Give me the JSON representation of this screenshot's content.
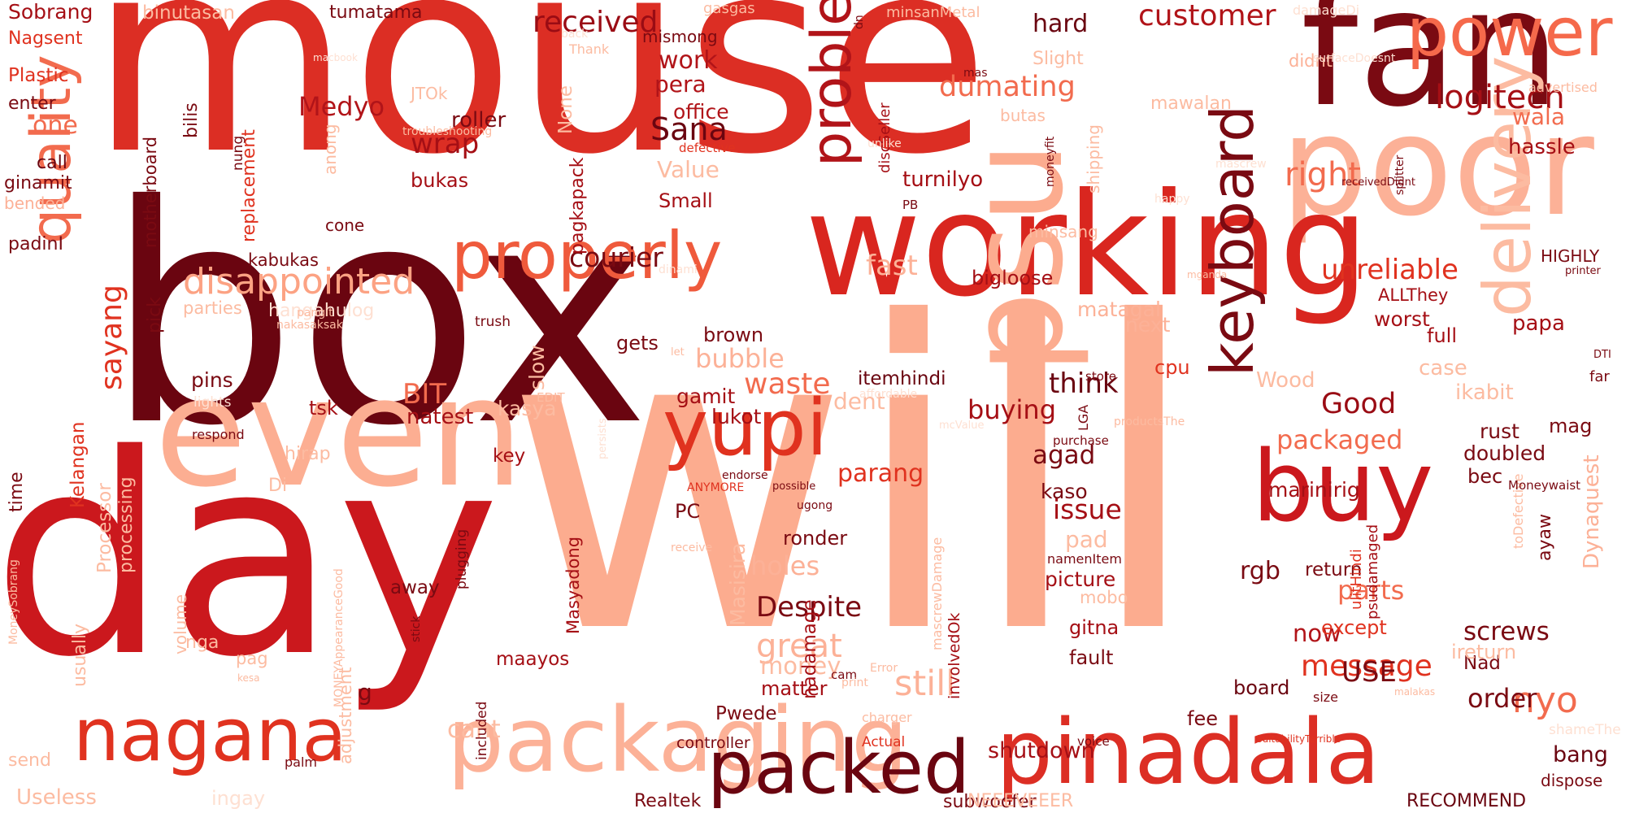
{
  "palette": {
    "darkest": "#67000d",
    "dark": "#a50f15",
    "red": "#cb181d",
    "mid_red": "#ef3b2c",
    "salmon": "#fb6a4a",
    "light_salmon": "#fc9272",
    "peach": "#fcbba1",
    "pale": "#fee0d2"
  },
  "words": [
    {
      "text": "mouse",
      "color": "#dc2e24"
    },
    {
      "text": "box",
      "color": "#6a0510"
    },
    {
      "text": "will",
      "color": "#fcac8f"
    },
    {
      "text": "day",
      "color": "#cb181d"
    },
    {
      "text": "fan",
      "color": "#7a0a12"
    },
    {
      "text": "poor",
      "color": "#fcb197"
    },
    {
      "text": "working",
      "color": "#d9261f"
    },
    {
      "text": "even",
      "color": "#fcae92"
    },
    {
      "text": "packaging",
      "color": "#fcb197"
    },
    {
      "text": "pinadala",
      "color": "#dc2e24"
    },
    {
      "text": "packed",
      "color": "#6a0510"
    },
    {
      "text": "buy",
      "color": "#cb181d"
    },
    {
      "text": "power",
      "color": "#f5694b"
    },
    {
      "text": "nagana",
      "color": "#e0321f"
    },
    {
      "text": "yupi",
      "color": "#e0321f"
    },
    {
      "text": "properly",
      "color": "#ef5a3c"
    },
    {
      "text": "quality",
      "color": "#f26b4e"
    },
    {
      "text": "keyboard",
      "color": "#7a0a12"
    },
    {
      "text": "psu",
      "color": "#fcac8f"
    },
    {
      "text": "delivery",
      "color": "#fcbba1"
    },
    {
      "text": "problem",
      "color": "#b11419"
    },
    {
      "text": "disappointed",
      "color": "#fca283"
    },
    {
      "text": "customer",
      "color": "#b11419"
    },
    {
      "text": "logitech",
      "color": "#a50f15"
    },
    {
      "text": "received",
      "color": "#9a0c14"
    },
    {
      "text": "Sana",
      "color": "#6a0510"
    },
    {
      "text": "wrap",
      "color": "#a50f15"
    },
    {
      "text": "right",
      "color": "#f26b4e"
    },
    {
      "text": "dumating",
      "color": "#f26b4e"
    },
    {
      "text": "unreliable",
      "color": "#e0321f"
    },
    {
      "text": "courier",
      "color": "#7a0a12"
    },
    {
      "text": "sayang",
      "color": "#e0321f"
    },
    {
      "text": "waste",
      "color": "#f26b4e"
    },
    {
      "text": "packaged",
      "color": "#f26b4e"
    },
    {
      "text": "parts",
      "color": "#f26b4e"
    },
    {
      "text": "Despite",
      "color": "#7a0a12"
    },
    {
      "text": "screws",
      "color": "#7a0a12"
    },
    {
      "text": "message",
      "color": "#e0321f"
    },
    {
      "text": "still",
      "color": "#fcb197"
    },
    {
      "text": "great",
      "color": "#fcb197"
    },
    {
      "text": "nyo",
      "color": "#f26b4e"
    },
    {
      "text": "order",
      "color": "#7a0a12"
    },
    {
      "text": "Good",
      "color": "#9a0c14"
    },
    {
      "text": "buying",
      "color": "#a50f15"
    },
    {
      "text": "issue",
      "color": "#a50f15"
    },
    {
      "text": "think",
      "color": "#6a0510"
    },
    {
      "text": "BIT",
      "color": "#f26b4e"
    },
    {
      "text": "Medyo",
      "color": "#b11419"
    },
    {
      "text": "fast",
      "color": "#fcb197"
    },
    {
      "text": "bubble",
      "color": "#fcb197"
    },
    {
      "text": "holes",
      "color": "#fcb197"
    },
    {
      "text": "Value",
      "color": "#fcbba1"
    },
    {
      "text": "hard",
      "color": "#6a0510"
    },
    {
      "text": "one",
      "color": "#f26b4e"
    },
    {
      "text": "work",
      "color": "#b11419"
    },
    {
      "text": "pera",
      "color": "#b11419"
    },
    {
      "text": "dent",
      "color": "#fcbba1"
    },
    {
      "text": "parang",
      "color": "#e0321f"
    },
    {
      "text": "agad",
      "color": "#7a0a12"
    },
    {
      "text": "rgb",
      "color": "#7a0a12"
    },
    {
      "text": "USE",
      "color": "#7a0a12"
    },
    {
      "text": "now",
      "color": "#b11419"
    },
    {
      "text": "money",
      "color": "#fcbba1"
    },
    {
      "text": "cant",
      "color": "#fcbba1"
    },
    {
      "text": "shutdown",
      "color": "#a50f15"
    },
    {
      "text": "bang",
      "color": "#6a0510"
    },
    {
      "text": "Dynaquest",
      "color": "#fcb197"
    },
    {
      "text": "wala",
      "color": "#f26b4e"
    },
    {
      "text": "hassle",
      "color": "#a50f15"
    },
    {
      "text": "roller",
      "color": "#7a0a12"
    },
    {
      "text": "office",
      "color": "#b11419"
    },
    {
      "text": "Small",
      "color": "#a50f15"
    },
    {
      "text": "bukas",
      "color": "#a50f15"
    },
    {
      "text": "turnilyo",
      "color": "#a50f15"
    },
    {
      "text": "bigloose",
      "color": "#a50f15"
    },
    {
      "text": "matagal",
      "color": "#fcb197"
    },
    {
      "text": "next",
      "color": "#fcb197"
    },
    {
      "text": "worst",
      "color": "#a50f15"
    },
    {
      "text": "full",
      "color": "#a50f15"
    },
    {
      "text": "papa",
      "color": "#a50f15"
    },
    {
      "text": "rust",
      "color": "#7a0a12"
    },
    {
      "text": "doubled",
      "color": "#7a0a12"
    },
    {
      "text": "bec",
      "color": "#7a0a12"
    },
    {
      "text": "mag",
      "color": "#7a0a12"
    },
    {
      "text": "marinirig",
      "color": "#a50f15"
    },
    {
      "text": "kaso",
      "color": "#7a0a12"
    },
    {
      "text": "return",
      "color": "#7a0a12"
    },
    {
      "text": "pad",
      "color": "#fcbba1"
    },
    {
      "text": "picture",
      "color": "#a50f15"
    },
    {
      "text": "fault",
      "color": "#7a0a12"
    },
    {
      "text": "gitna",
      "color": "#a50f15"
    },
    {
      "text": "fee",
      "color": "#7a0a12"
    },
    {
      "text": "board",
      "color": "#6a0510"
    },
    {
      "text": "Nad",
      "color": "#7a0a12"
    },
    {
      "text": "except",
      "color": "#e0321f"
    },
    {
      "text": "ayaw",
      "color": "#7a0a12"
    },
    {
      "text": "ireturn",
      "color": "#fcbba1"
    },
    {
      "text": "case",
      "color": "#fcbba1"
    },
    {
      "text": "ikabit",
      "color": "#fcbba1"
    },
    {
      "text": "Wood",
      "color": "#fcbba1"
    },
    {
      "text": "cpu",
      "color": "#e0321f"
    },
    {
      "text": "itemhindi",
      "color": "#6a0510"
    },
    {
      "text": "lukot",
      "color": "#a50f15"
    },
    {
      "text": "gamit",
      "color": "#a50f15"
    },
    {
      "text": "natest",
      "color": "#a50f15"
    },
    {
      "text": "brown",
      "color": "#7a0a12"
    },
    {
      "text": "gets",
      "color": "#7a0a12"
    },
    {
      "text": "pins",
      "color": "#7a0a12"
    },
    {
      "text": "tsk",
      "color": "#a50f15"
    },
    {
      "text": "key",
      "color": "#a50f15"
    },
    {
      "text": "kasya",
      "color": "#fcbba1"
    },
    {
      "text": "slow",
      "color": "#fcbba1"
    },
    {
      "text": "PC",
      "color": "#7a0a12"
    },
    {
      "text": "ronder",
      "color": "#7a0a12"
    },
    {
      "text": "away",
      "color": "#7a0a12"
    },
    {
      "text": "Masisira",
      "color": "#fcbba1"
    },
    {
      "text": "Pwede",
      "color": "#7a0a12"
    },
    {
      "text": "matter",
      "color": "#a50f15"
    },
    {
      "text": "g",
      "color": "#7a0a12"
    },
    {
      "text": "nadamage",
      "color": "#a50f15"
    },
    {
      "text": "maayos",
      "color": "#a50f15"
    },
    {
      "text": "Realtek",
      "color": "#7a0a12"
    },
    {
      "text": "subwoofer",
      "color": "#7a0a12"
    },
    {
      "text": "RECOMMEND",
      "color": "#6a0510"
    },
    {
      "text": "Useless",
      "color": "#fcbba1"
    },
    {
      "text": "ingay",
      "color": "#fee0d2"
    },
    {
      "text": "controller",
      "color": "#7a0a12"
    },
    {
      "text": "Actual",
      "color": "#e0321f"
    },
    {
      "text": "NEEEVEEER",
      "color": "#fcbba1"
    },
    {
      "text": "Sobrang",
      "color": "#a50f15"
    },
    {
      "text": "Nagsent",
      "color": "#e0321f"
    },
    {
      "text": "Plastic",
      "color": "#e0321f"
    },
    {
      "text": "enter",
      "color": "#7a0a12"
    },
    {
      "text": "call",
      "color": "#6a0510"
    },
    {
      "text": "ginamit",
      "color": "#7a0a12"
    },
    {
      "text": "bended",
      "color": "#fcb197"
    },
    {
      "text": "padinI",
      "color": "#7a0a12"
    },
    {
      "text": "binutasan",
      "color": "#fcbba1"
    },
    {
      "text": "tumatama",
      "color": "#7a0a12"
    },
    {
      "text": "gasgas",
      "color": "#fcbba1"
    },
    {
      "text": "minsanMetal",
      "color": "#fcbba1"
    },
    {
      "text": "JTOk",
      "color": "#fcbba1"
    },
    {
      "text": "kabukas",
      "color": "#7a0a12"
    },
    {
      "text": "cone",
      "color": "#7a0a12"
    },
    {
      "text": "parties",
      "color": "#fcbba1"
    },
    {
      "text": "hangahulog",
      "color": "#fee0d2"
    },
    {
      "text": "pick",
      "color": "#7a0a12"
    },
    {
      "text": "mismong",
      "color": "#7a0a12"
    },
    {
      "text": "didnt",
      "color": "#fcb197"
    },
    {
      "text": "Slight",
      "color": "#fcbba1"
    },
    {
      "text": "mawalan",
      "color": "#fcbba1"
    },
    {
      "text": "butas",
      "color": "#fcbba1"
    },
    {
      "text": "minsang",
      "color": "#fcbba1"
    },
    {
      "text": "HIGHLY",
      "color": "#7a0a12"
    },
    {
      "text": "ALLThey",
      "color": "#a50f15"
    },
    {
      "text": "advertised",
      "color": "#fcbba1"
    },
    {
      "text": "surfaceDoesnt",
      "color": "#fee0d2"
    },
    {
      "text": "damageDi",
      "color": "#fee0d2"
    },
    {
      "text": "splitter",
      "color": "#7a0a12"
    },
    {
      "text": "receivedDidnt",
      "color": "#7a0a12"
    },
    {
      "text": "happy",
      "color": "#fee0d2"
    },
    {
      "text": "moneyfit",
      "color": "#7a0a12"
    },
    {
      "text": "PB",
      "color": "#7a0a12"
    },
    {
      "text": "defective",
      "color": "#e0321f"
    },
    {
      "text": "troubleshooting",
      "color": "#fcbba1"
    },
    {
      "text": "Thank",
      "color": "#fcbba1"
    },
    {
      "text": "back",
      "color": "#fee0d2"
    },
    {
      "text": "macbook",
      "color": "#fee0d2"
    },
    {
      "text": "mas",
      "color": "#7a0a12"
    },
    {
      "text": "dn",
      "color": "#7a0a12"
    },
    {
      "text": "store",
      "color": "#7a0a12"
    },
    {
      "text": "affordable",
      "color": "#fee0d2"
    },
    {
      "text": "LGA",
      "color": "#7a0a12"
    },
    {
      "text": "purchase",
      "color": "#7a0a12"
    },
    {
      "text": "productsThe",
      "color": "#fcbba1"
    },
    {
      "text": "mcValue",
      "color": "#fee0d2"
    },
    {
      "text": "possible",
      "color": "#7a0a12"
    },
    {
      "text": "endorse",
      "color": "#7a0a12"
    },
    {
      "text": "ANYMORE",
      "color": "#e0321f"
    },
    {
      "text": "ugong",
      "color": "#7a0a12"
    },
    {
      "text": "namenItem",
      "color": "#7a0a12"
    },
    {
      "text": "involvedOk",
      "color": "#a50f15"
    },
    {
      "text": "mascrewDamage",
      "color": "#fcbba1"
    },
    {
      "text": "ulitHindi",
      "color": "#e0321f"
    },
    {
      "text": "psudamaged",
      "color": "#a50f15"
    },
    {
      "text": "toDefective",
      "color": "#fcbba1"
    },
    {
      "text": "mobo",
      "color": "#fcbba1"
    },
    {
      "text": "receive",
      "color": "#fcbba1"
    },
    {
      "text": "Error",
      "color": "#fcbba1"
    },
    {
      "text": "cam",
      "color": "#7a0a12"
    },
    {
      "text": "print",
      "color": "#fcbba1"
    },
    {
      "text": "charger",
      "color": "#fcbba1"
    },
    {
      "text": "voice",
      "color": "#7a0a12"
    },
    {
      "text": "SuitabilityTerrible",
      "color": "#e0321f"
    },
    {
      "text": "size",
      "color": "#7a0a12"
    },
    {
      "text": "malakas",
      "color": "#fcbba1"
    },
    {
      "text": "dispose",
      "color": "#7a0a12"
    },
    {
      "text": "shameThe",
      "color": "#fee0d2"
    },
    {
      "text": "Moneywaist",
      "color": "#7a0a12"
    },
    {
      "text": "DTI",
      "color": "#7a0a12"
    },
    {
      "text": "far",
      "color": "#7a0a12"
    },
    {
      "text": "printer",
      "color": "#7a0a12"
    },
    {
      "text": "mganda",
      "color": "#fcbba1"
    },
    {
      "text": "respond",
      "color": "#7a0a12"
    },
    {
      "text": "lights",
      "color": "#fee0d2"
    },
    {
      "text": "EDIT",
      "color": "#fcbba1"
    },
    {
      "text": "persists",
      "color": "#fee0d2"
    },
    {
      "text": "let",
      "color": "#fcbba1"
    },
    {
      "text": "pangit",
      "color": "#fcbba1"
    },
    {
      "text": "trush",
      "color": "#7a0a12"
    },
    {
      "text": "nakasaksak",
      "color": "#fcbba1"
    },
    {
      "text": "time",
      "color": "#7a0a12"
    },
    {
      "text": "Kelangan",
      "color": "#e0321f"
    },
    {
      "text": "Processor",
      "color": "#fcbba1"
    },
    {
      "text": "processing",
      "color": "#fcbba1"
    },
    {
      "text": "hirap",
      "color": "#fcbba1"
    },
    {
      "text": "Di",
      "color": "#fcbba1"
    },
    {
      "text": "volume",
      "color": "#fcbba1"
    },
    {
      "text": "usually",
      "color": "#fcbba1"
    },
    {
      "text": "nga",
      "color": "#fcbba1"
    },
    {
      "text": "pag",
      "color": "#fcbba1"
    },
    {
      "text": "adjustment",
      "color": "#fcbba1"
    },
    {
      "text": "MONEYAppearanceGood",
      "color": "#fcbba1"
    },
    {
      "text": "stick",
      "color": "#7a0a12"
    },
    {
      "text": "plugging",
      "color": "#7a0a12"
    },
    {
      "text": "included",
      "color": "#7a0a12"
    },
    {
      "text": "Masyadong",
      "color": "#a50f15"
    },
    {
      "text": "MoneySobrang",
      "color": "#fcbba1"
    },
    {
      "text": "send",
      "color": "#fcbba1"
    },
    {
      "text": "palm",
      "color": "#7a0a12"
    },
    {
      "text": "kesa",
      "color": "#fcbba1"
    },
    {
      "text": "motherboard",
      "color": "#7a0a12"
    },
    {
      "text": "replacement",
      "color": "#e0321f"
    },
    {
      "text": "nung",
      "color": "#7a0a12"
    },
    {
      "text": "bilis",
      "color": "#7a0a12"
    },
    {
      "text": "anong",
      "color": "#fcbba1"
    },
    {
      "text": "shipping",
      "color": "#fcbba1"
    },
    {
      "text": "pagkapack",
      "color": "#a50f15"
    },
    {
      "text": "None",
      "color": "#fcbba1"
    },
    {
      "text": "discSeller",
      "color": "#a50f15"
    },
    {
      "text": "unlike",
      "color": "#fee0d2"
    },
    {
      "text": "mascrew",
      "color": "#fee0d2"
    },
    {
      "text": "dinami",
      "color": "#fee0d2"
    }
  ]
}
